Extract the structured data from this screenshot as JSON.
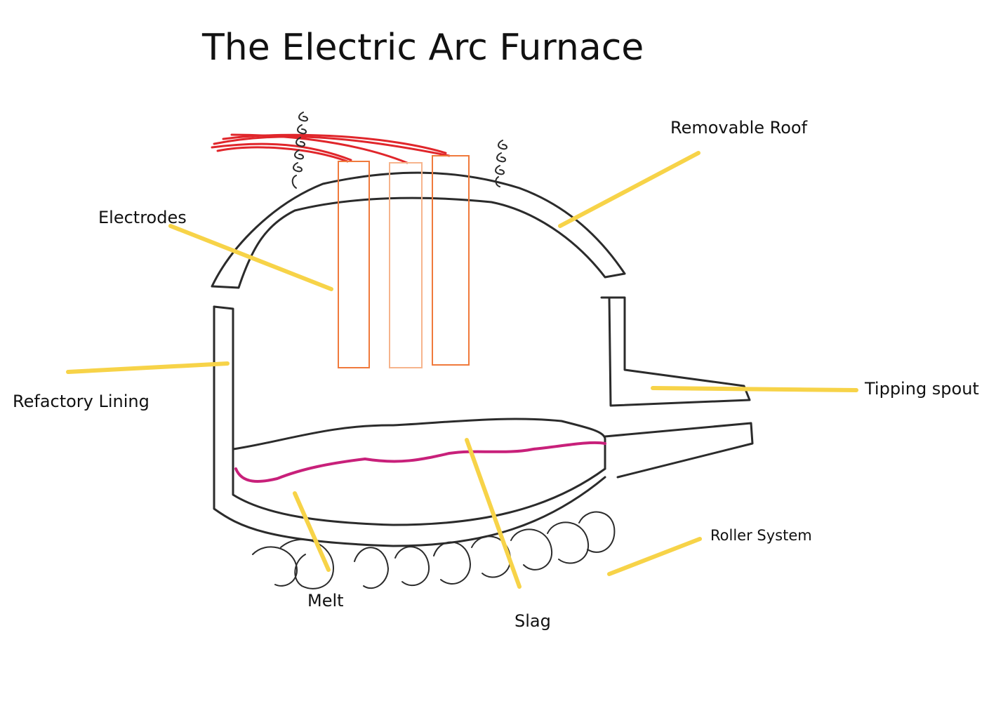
{
  "title": "The Electric Arc Furnace",
  "labels": {
    "removable_roof": "Removable Roof",
    "electrodes": "Electrodes",
    "refactory_lining": "Refactory Lining",
    "tipping_spout": "Tipping spout",
    "roller_system": "Roller System",
    "melt": "Melt",
    "slag": "Slag"
  },
  "colors": {
    "pointer": "#f7d348",
    "electrode": "#f07a3c",
    "wire": "#e0262b",
    "slag_line": "#c8207a",
    "ink": "#2b2b2b"
  }
}
